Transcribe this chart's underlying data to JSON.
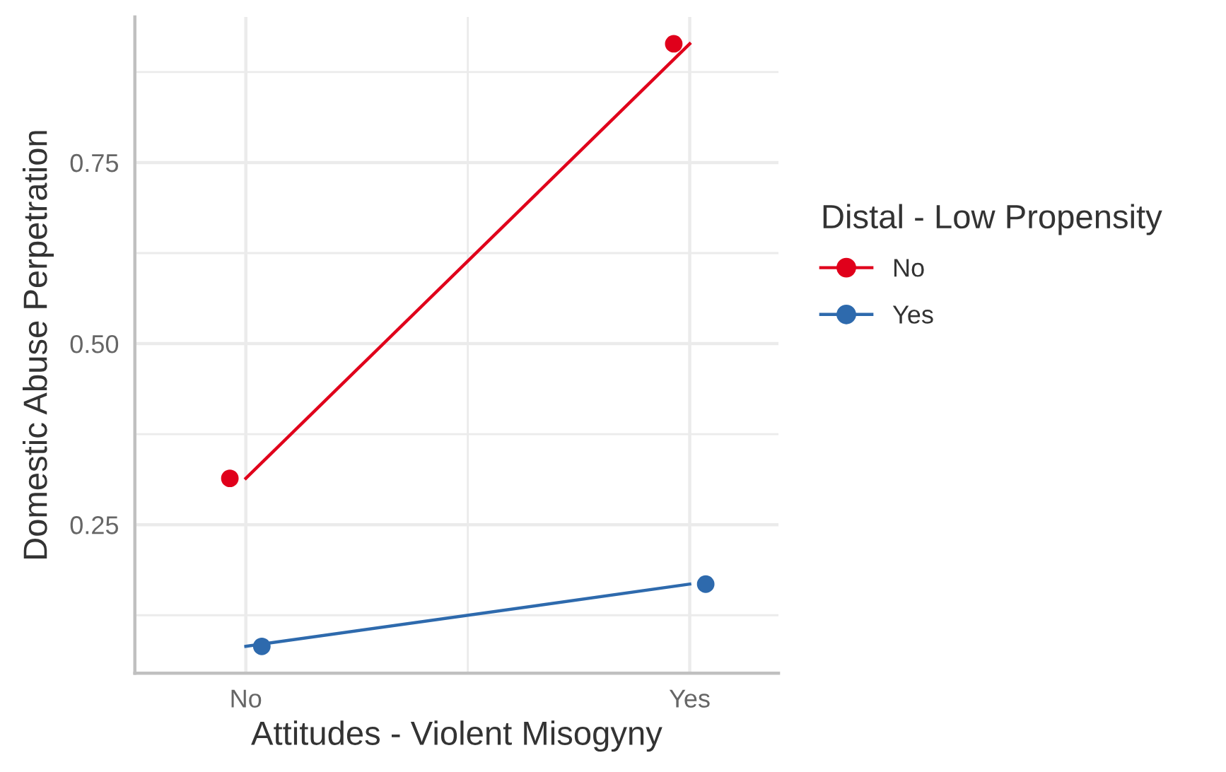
{
  "chart_data": {
    "type": "line",
    "xlabel": "Attitudes - Violent Misogyny",
    "ylabel": "Domestic Abuse Perpetration",
    "legend_title": "Distal - Low Propensity",
    "categories": [
      "No",
      "Yes"
    ],
    "series": [
      {
        "name": "No",
        "color": "#e0001b",
        "values": [
          0.314,
          0.914
        ]
      },
      {
        "name": "Yes",
        "color": "#2e6aad",
        "values": [
          0.082,
          0.168
        ]
      }
    ],
    "ylim": [
      0.045,
      0.951
    ],
    "yticks": [
      {
        "value": 0.25,
        "label": "0.25"
      },
      {
        "value": 0.5,
        "label": "0.50"
      },
      {
        "value": 0.75,
        "label": "0.75"
      }
    ],
    "grid": true,
    "legend": "right",
    "marker": "circle",
    "line_style": "solid"
  }
}
